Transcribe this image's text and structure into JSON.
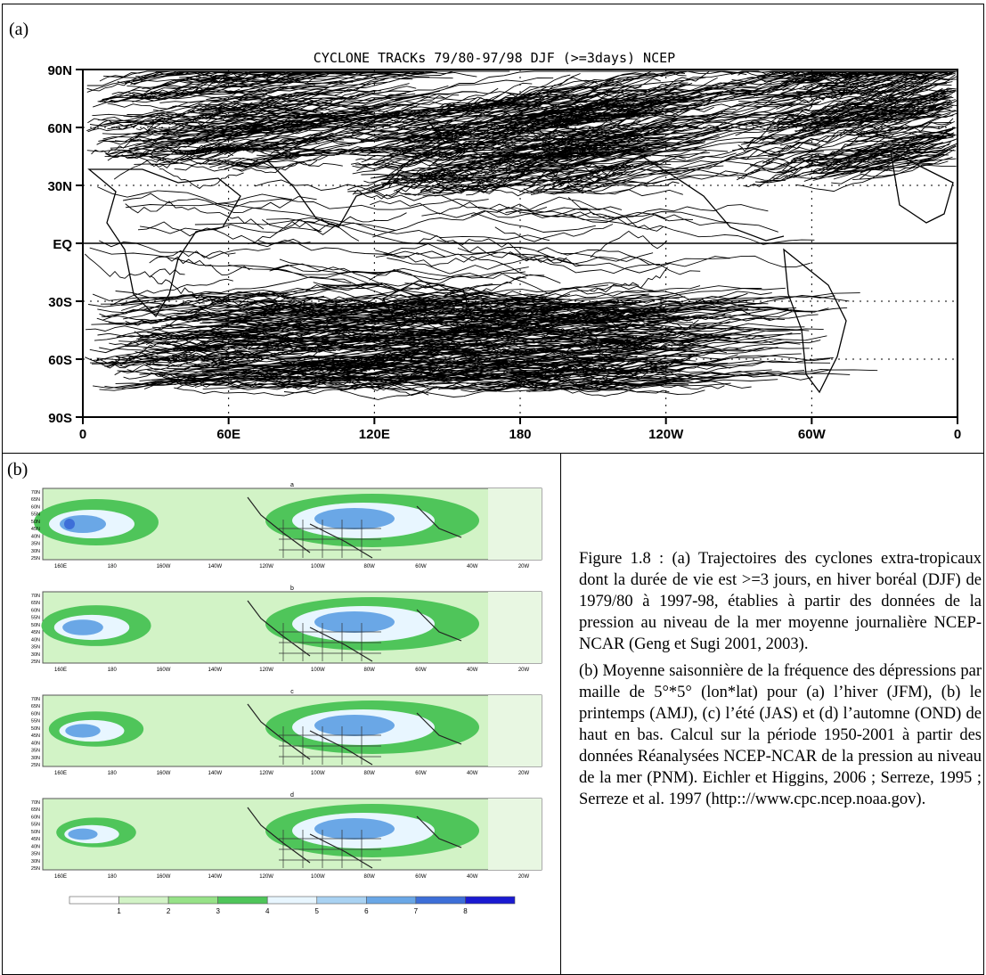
{
  "panel_a": {
    "label": "(a)",
    "title": "CYCLONE TRACKs 79/80-97/98 DJF (>=3days) NCEP",
    "y_ticks": [
      "90N",
      "60N",
      "30N",
      "EQ",
      "30S",
      "60S",
      "90S"
    ],
    "x_ticks": [
      "0",
      "60E",
      "120E",
      "180",
      "120W",
      "60W",
      "0"
    ]
  },
  "panel_b": {
    "label": "(b)",
    "x_ticks": [
      "160E",
      "180",
      "160W",
      "140W",
      "120W",
      "100W",
      "80W",
      "60W",
      "40W",
      "20W"
    ],
    "y_ticks": [
      "70N",
      "65N",
      "60N",
      "55N",
      "50N",
      "45N",
      "40N",
      "35N",
      "30N",
      "25N"
    ],
    "sub_labels": [
      "a",
      "b",
      "c",
      "d"
    ],
    "colorbar_labels": [
      "1",
      "2",
      "3",
      "4",
      "5",
      "6",
      "7",
      "8"
    ],
    "colorbar_colors": [
      "#ffffff",
      "#d2f3c6",
      "#97e288",
      "#4fc55a",
      "#e8f6ff",
      "#a9d2f2",
      "#6aa7e6",
      "#3d6fd8",
      "#1a1ad1"
    ]
  },
  "caption": {
    "para1": "Figure 1.8 : (a) Trajectoires des cyclones extra-tropicaux dont la durée de vie est >=3 jours, en hiver boréal (DJF) de 1979/80 à 1997-98, établies à partir des données de la pression au niveau de la mer moyenne journalière NCEP-NCAR (Geng et Sugi 2001, 2003).",
    "para2": "(b) Moyenne saisonnière de la fréquence des dépressions par maille de 5°*5° (lon*lat) pour (a) l’hiver (JFM), (b) le printemps (AMJ), (c) l’été (JAS) et (d) l’automne (OND) de haut en bas. Calcul sur la période 1950-2001 à partir des données Réanalysées NCEP-NCAR de la pression au niveau de la mer (PNM). Eichler et Higgins, 2006 ; Serreze, 1995 ; Serreze et al. 1997 (http:://www.cpc.ncep.noaa.gov)."
  }
}
